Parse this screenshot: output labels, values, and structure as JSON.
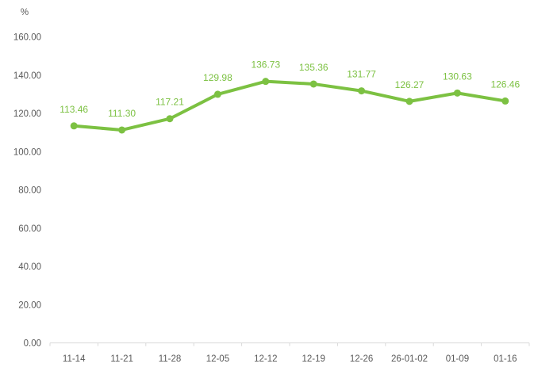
{
  "chart_data": {
    "type": "line",
    "title": "",
    "unit_label": "%",
    "categories": [
      "11-14",
      "11-21",
      "11-28",
      "12-05",
      "12-12",
      "12-19",
      "12-26",
      "26-01-02",
      "01-09",
      "01-16"
    ],
    "values": [
      113.46,
      111.3,
      117.21,
      129.98,
      136.73,
      135.36,
      131.77,
      126.27,
      130.63,
      126.46
    ],
    "data_labels": [
      "113.46",
      "111.30",
      "117.21",
      "129.98",
      "136.73",
      "135.36",
      "131.77",
      "126.27",
      "130.63",
      "126.46"
    ],
    "y_ticks": [
      "0.00",
      "20.00",
      "40.00",
      "60.00",
      "80.00",
      "100.00",
      "120.00",
      "140.00",
      "160.00"
    ],
    "ylim": [
      0,
      160
    ],
    "xlabel": "",
    "ylabel": "%",
    "grid": false,
    "legend": "none",
    "colors": {
      "series": "#7CC142",
      "data_label_text": "#7CC142",
      "axis_text": "#595959",
      "axis_line": "#D9D9D9",
      "background": "#FFFFFF"
    }
  }
}
